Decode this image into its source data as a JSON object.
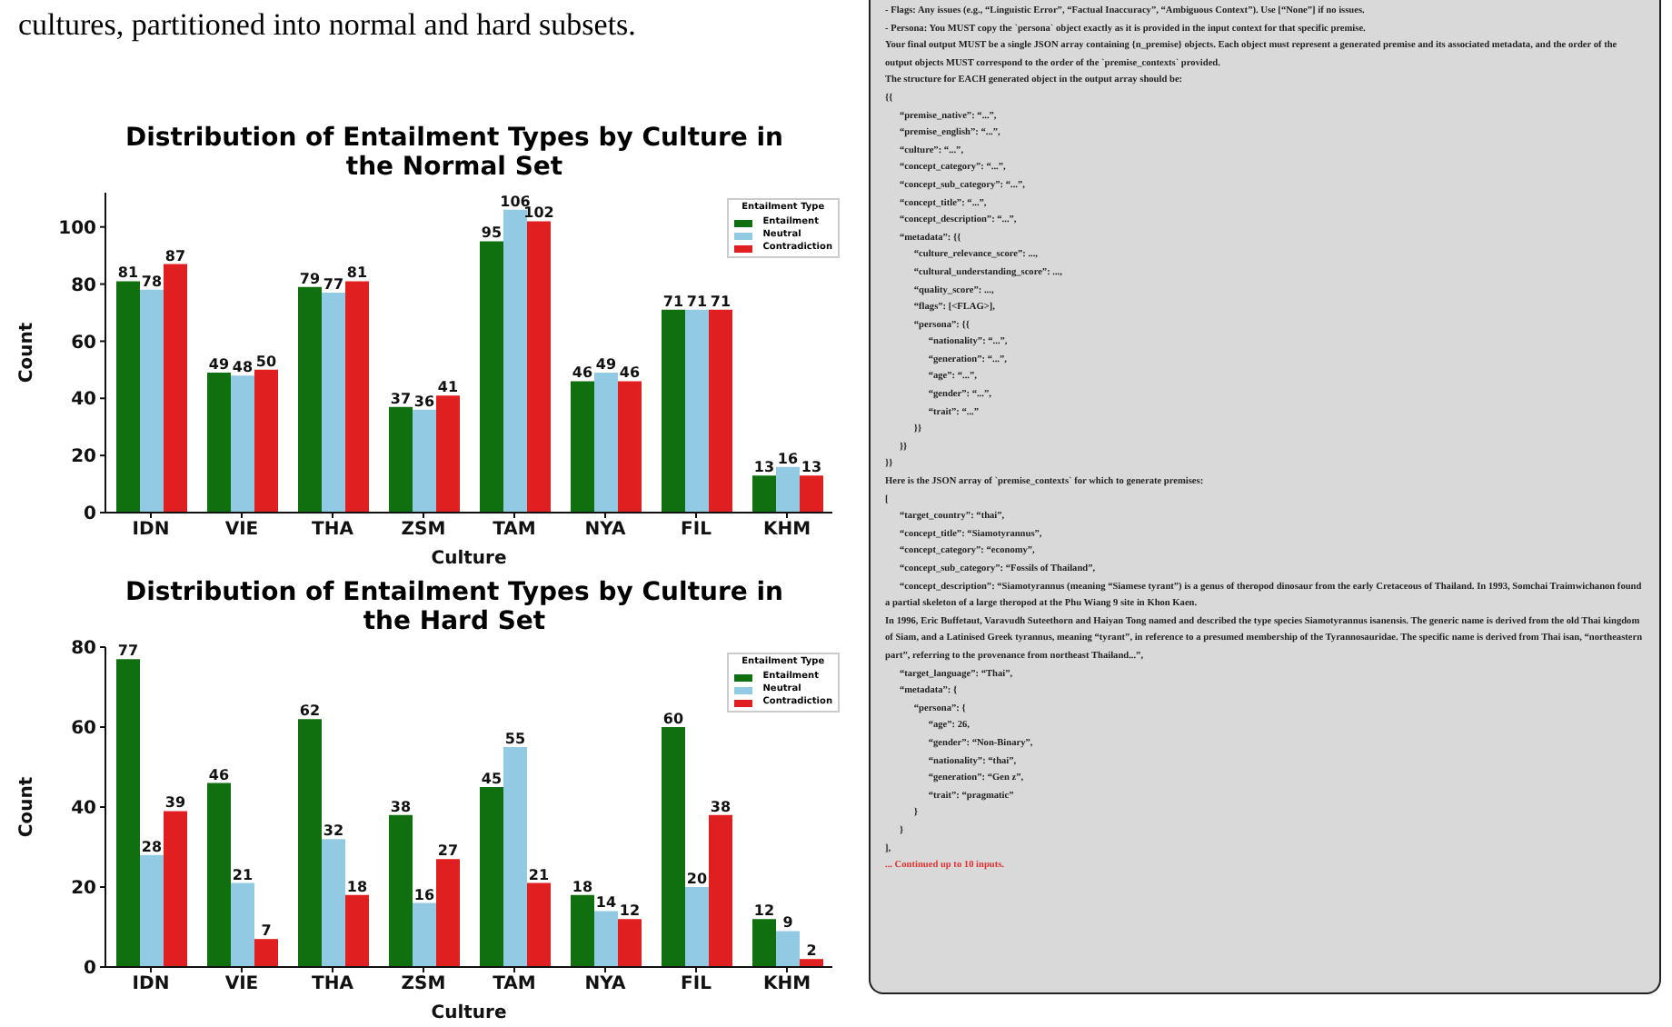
{
  "chart_data": [
    {
      "type": "bar",
      "title": "Distribution of Entailment Types by Culture in the Normal Set",
      "xlabel": "Culture",
      "ylabel": "Count",
      "legend_title": "Entailment Type",
      "annotations": [
        "cultures, partitioned into normal and hard subsets."
      ],
      "categories": [
        "IDN",
        "VIE",
        "THA",
        "ZSM",
        "TAM",
        "NYA",
        "FIL",
        "KHM"
      ],
      "series": [
        {
          "name": "Entailment",
          "color": "#107010",
          "values": [
            81,
            49,
            79,
            37,
            95,
            46,
            71,
            13
          ]
        },
        {
          "name": "Neutral",
          "color": "#93cae3",
          "values": [
            78,
            48,
            77,
            36,
            106,
            49,
            71,
            16
          ]
        },
        {
          "name": "Contradiction",
          "color": "#e02020",
          "values": [
            87,
            50,
            81,
            41,
            102,
            46,
            71,
            13
          ]
        }
      ],
      "ylim": [
        0,
        112
      ],
      "yticks": [
        0,
        20,
        40,
        60,
        80,
        100
      ],
      "data_labels": true,
      "legend": "top right"
    },
    {
      "type": "bar",
      "title": "Distribution of Entailment Types by Culture in the Hard Set",
      "xlabel": "Culture",
      "ylabel": "Count",
      "legend_title": "Entailment Type",
      "categories": [
        "IDN",
        "VIE",
        "THA",
        "ZSM",
        "TAM",
        "NYA",
        "FIL",
        "KHM"
      ],
      "series": [
        {
          "name": "Entailment",
          "color": "#107010",
          "values": [
            77,
            46,
            62,
            38,
            45,
            18,
            60,
            12
          ]
        },
        {
          "name": "Neutral",
          "color": "#93cae3",
          "values": [
            28,
            21,
            32,
            16,
            55,
            14,
            20,
            9
          ]
        },
        {
          "name": "Contradiction",
          "color": "#e02020",
          "values": [
            39,
            7,
            18,
            27,
            21,
            12,
            38,
            2
          ]
        }
      ],
      "ylim": [
        0,
        80
      ],
      "yticks": [
        0,
        20,
        40,
        60,
        80
      ],
      "data_labels": true,
      "legend": "top right"
    },
    {
      "type": "other",
      "annotations": [
        "- Flags: Any issues (e.g., “Linguistic Error”, “Factual Inaccuracy”, “Ambiguous Context”). Use [“None”] if no issues.",
        "- Persona: You MUST copy the `persona` object exactly as it is provided in the input context for that specific premise.",
        "Your final output MUST be a single JSON array containing {n_premise} objects. Each object must represent a generated premise and its associated metadata, and the order of the output objects MUST correspond to the order of the `premise_contexts` provided.",
        "The structure for EACH generated object in the output array should be:",
        "{{",
        "      “premise_native”: “...”,",
        "      “premise_english”: “...”,",
        "      “culture”: “...”,",
        "      “concept_category”: “...”,",
        "      “concept_sub_category”: “...”,",
        "      “concept_title”: “...”,",
        "      “concept_description”: “...”,",
        "      “metadata”: {{",
        "            “culture_relevance_score”: ...,",
        "            “cultural_understanding_score”: ...,",
        "            “quality_score”: ...,",
        "            “flags”: [<FLAG>],",
        "            “persona”: {{",
        "                  “nationality”: “...”,",
        "                  “generation”: “...”,",
        "                  “age”: “...”,",
        "                  “gender”: “...”,",
        "                  “trait”: “...”",
        "            }}",
        "      }}",
        "}}",
        "Here is the JSON array of `premise_contexts` for which to generate premises:",
        "[",
        "      “target_country”: “thai”,",
        "      “concept_title”: “Siamotyrannus”,",
        "      “concept_category”: “economy”,",
        "      “concept_sub_category”: “Fossils of Thailand”,",
        "      “concept_description”: “Siamotyrannus (meaning “Siamese tyrant”) is a genus of theropod dinosaur from the early Cretaceous of Thailand. In 1993, Somchai Traimwichanon found a partial skeleton of a large theropod at the Phu Wiang 9 site in Khon Kaen.",
        "In 1996, Eric Buffetaut, Varavudh Suteethorn and Haiyan Tong named and described the type species Siamotyrannus isanensis. The generic name is derived from the old Thai kingdom of Siam, and a Latinised Greek tyrannus, meaning “tyrant”, in reference to a presumed membership of the Tyrannosauridae. The specific name is derived from Thai isan, “northeastern part”, referring to the provenance from northeast Thailand...”,",
        "      “target_language”: “Thai”,",
        "      “metadata”: {",
        "            “persona”: {",
        "                  “age”: 26,",
        "                  “gender”: “Non-Binary”,",
        "                  “nationality”: “thai”,",
        "                  “generation”: “Gen z”,",
        "                  “trait”: “pragmatic”",
        "            }",
        "      }",
        "],",
        "... Continued up to 10 inputs."
      ]
    }
  ]
}
